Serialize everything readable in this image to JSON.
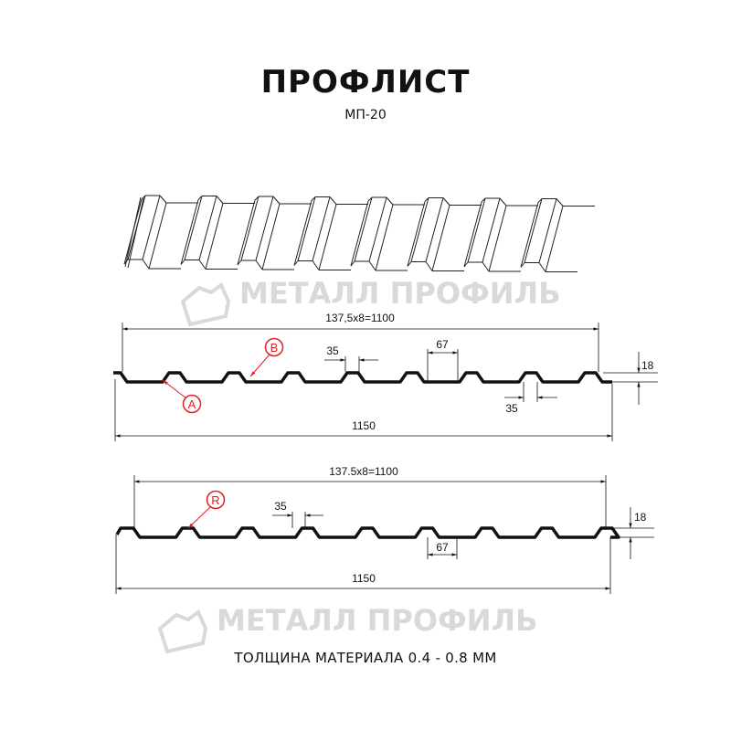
{
  "header": {
    "title": "ПРОФЛИСТ",
    "subtitle": "МП-20"
  },
  "watermark": {
    "text": "МЕТАЛЛ ПРОФИЛЬ"
  },
  "profile_a": {
    "pitch_label": "137,5x8=1100",
    "width_label": "1150",
    "rib_top_label": "35",
    "rib_bottom_label": "35",
    "trough_label": "67",
    "height_label": "18",
    "marker_a": "A",
    "marker_b": "B"
  },
  "profile_r": {
    "pitch_label": "137.5x8=1100",
    "width_label": "1150",
    "rib_top_label": "35",
    "trough_label": "67",
    "height_label": "18",
    "marker_r": "R"
  },
  "colors": {
    "marker": "#e31e24",
    "line": "#111111",
    "watermark": "#d9d9d9"
  },
  "footer": {
    "thickness": "ТОЛЩИНА МАТЕРИАЛА 0.4 - 0.8 ММ"
  }
}
